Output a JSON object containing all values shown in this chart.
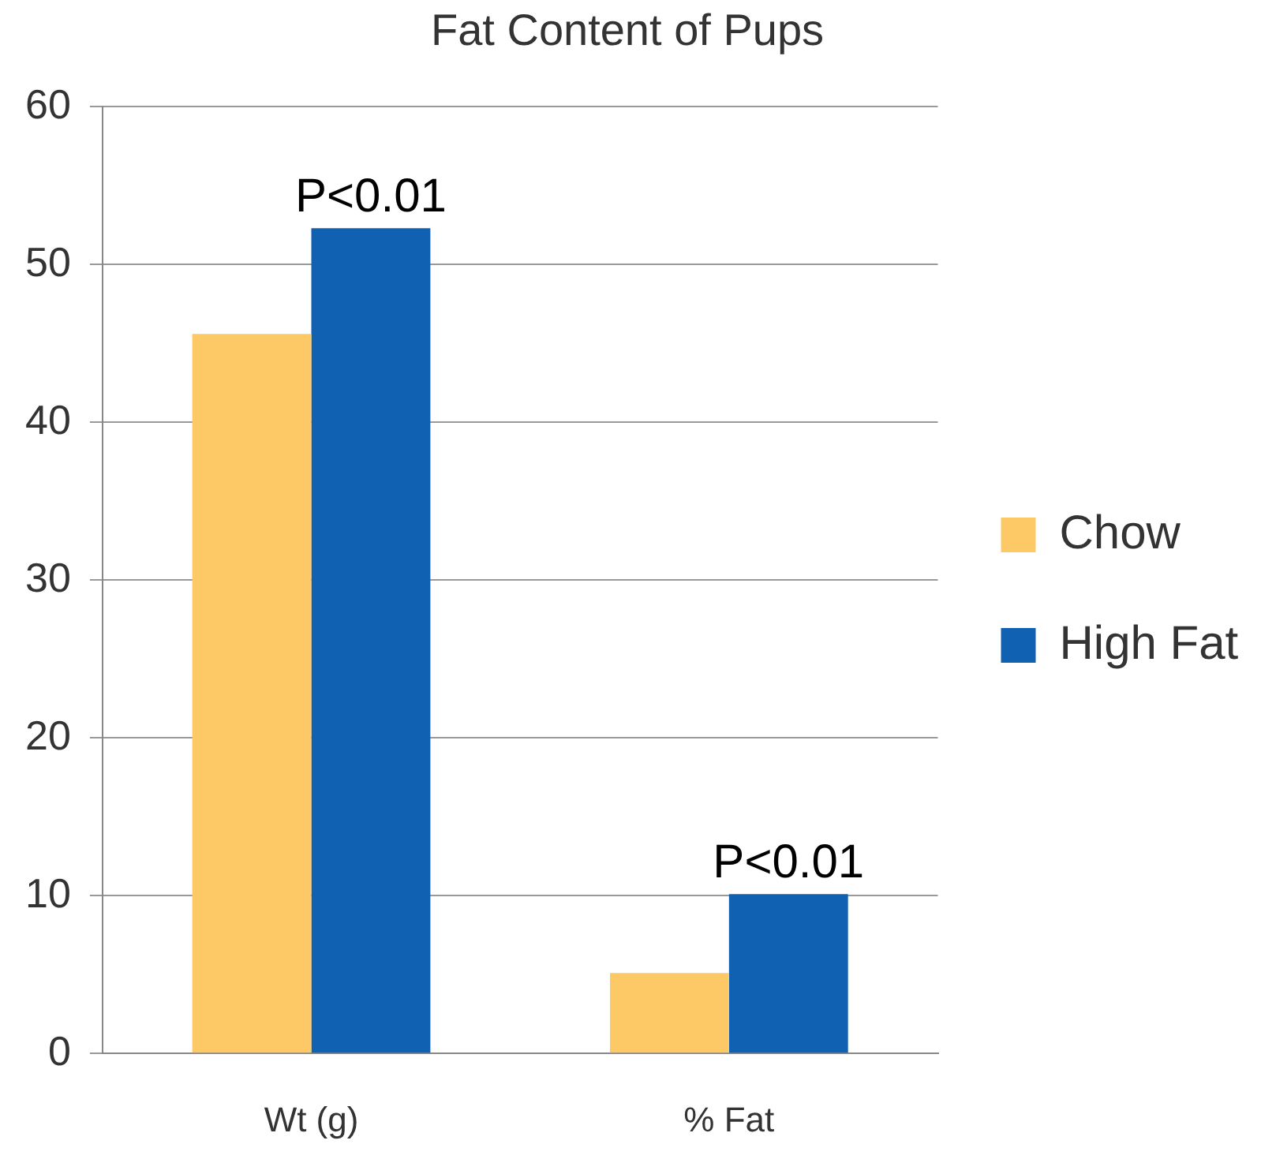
{
  "chart_data": {
    "type": "bar",
    "title": "Fat Content of Pups",
    "categories": [
      "Wt (g)",
      "% Fat"
    ],
    "series": [
      {
        "name": "Chow",
        "color": "#fdc967",
        "values": [
          45.6,
          5.1
        ]
      },
      {
        "name": "High Fat",
        "color": "#1061b1",
        "values": [
          52.3,
          10.1
        ]
      }
    ],
    "ylim": [
      0,
      60
    ],
    "yticks": [
      0,
      10,
      20,
      30,
      40,
      50,
      60
    ],
    "grid": "y",
    "legend": "right",
    "annotations": [
      {
        "text": "P<0.01",
        "x": "Wt (g)",
        "y": 52.3
      },
      {
        "text": "P<0.01",
        "x": "% Fat",
        "y": 10.1
      }
    ]
  }
}
